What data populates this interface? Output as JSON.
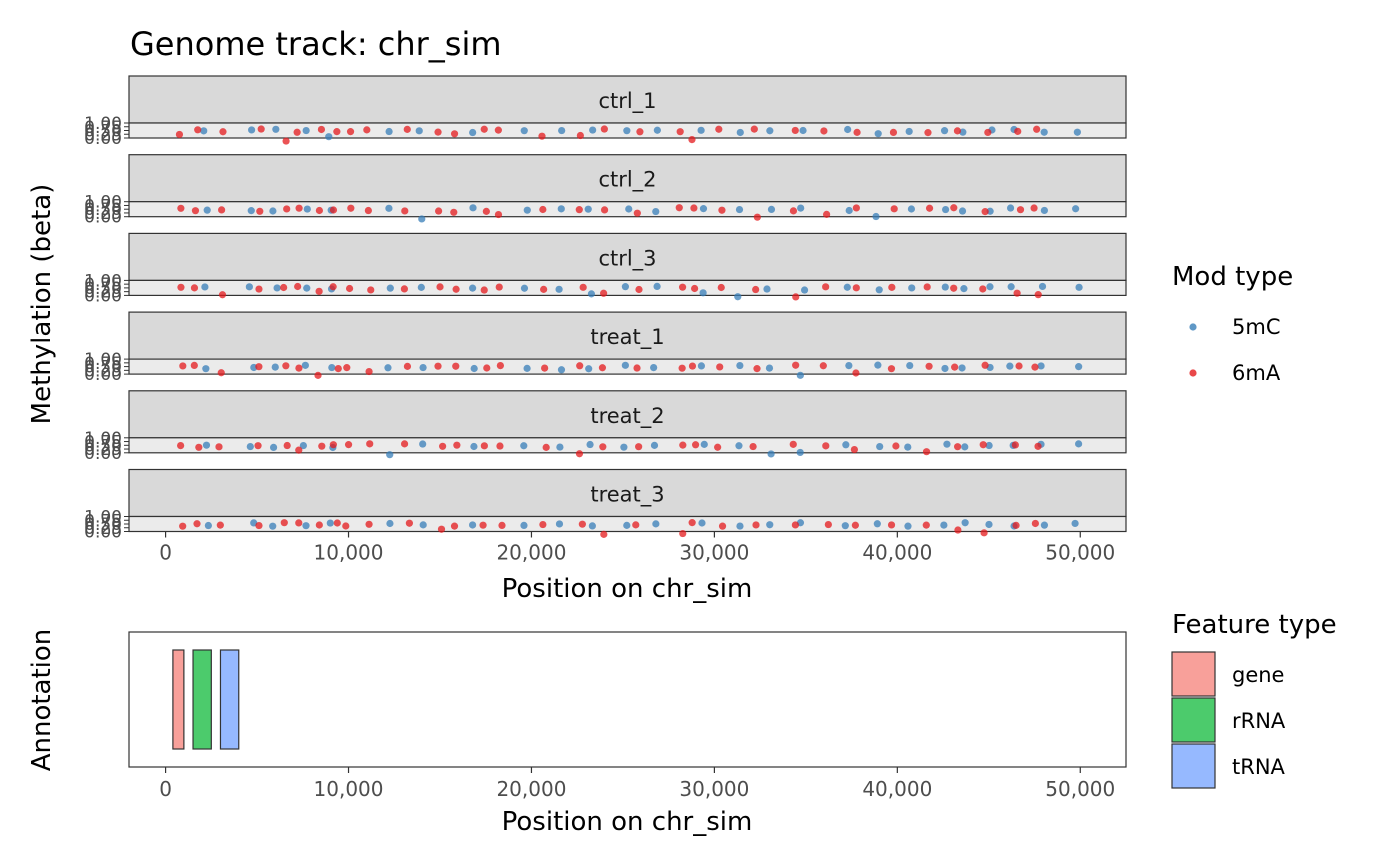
{
  "title": "Genome track: chr_sim",
  "colors": {
    "mod_5mC": "#377EB8",
    "mod_6mA": "#E41A1C",
    "gene": "#F8A09A",
    "rRNA": "#4CCB6C",
    "tRNA": "#96B9FF"
  },
  "chart_data": [
    {
      "type": "scatter",
      "facets": [
        "ctrl_1",
        "ctrl_2",
        "ctrl_3",
        "treat_1",
        "treat_2",
        "treat_3"
      ],
      "xlabel": "Position on chr_sim",
      "ylabel": "Methylation (beta)",
      "xlim": [
        -2000,
        52500
      ],
      "ylim": [
        0,
        1
      ],
      "x_ticks": [
        0,
        10000,
        20000,
        30000,
        40000,
        50000
      ],
      "x_tick_labels": [
        "0",
        "10,000",
        "20,000",
        "30,000",
        "40,000",
        "50,000"
      ],
      "y_ticks": [
        0,
        0.25,
        0.5,
        0.75,
        1
      ],
      "y_tick_labels": [
        "0.00",
        "0.25",
        "0.50",
        "0.75",
        "1.00"
      ],
      "legend": {
        "title": "Mod type",
        "entries": [
          "5mC",
          "6mA"
        ],
        "placement": "right"
      },
      "series": [
        {
          "name": "5mC",
          "x": [
            2200,
            4700,
            6000,
            7600,
            9000,
            12200,
            14000,
            16900,
            19700,
            21600,
            23200,
            25200,
            26800,
            29400,
            31300,
            33000,
            34800,
            37300,
            38900,
            40700,
            42600,
            43600,
            45100,
            46300,
            47900,
            49800
          ]
        },
        {
          "name": "6mA",
          "x": [
            800,
            1700,
            3000,
            5200,
            6600,
            7200,
            8400,
            9300,
            10000,
            11100,
            13200,
            15000,
            15800,
            17500,
            18300,
            20700,
            22700,
            24000,
            25800,
            28200,
            28900,
            30300,
            32200,
            34300,
            36100,
            37800,
            39800,
            41700,
            43200,
            44800,
            46600,
            47600
          ]
        }
      ]
    },
    {
      "type": "bar",
      "xlabel": "Position on chr_sim",
      "ylabel": "Annotation",
      "xlim": [
        -2000,
        52500
      ],
      "x_ticks": [
        0,
        10000,
        20000,
        30000,
        40000,
        50000
      ],
      "x_tick_labels": [
        "0",
        "10,000",
        "20,000",
        "30,000",
        "40,000",
        "50,000"
      ],
      "legend": {
        "title": "Feature type",
        "entries": [
          "gene",
          "rRNA",
          "tRNA"
        ],
        "placement": "right"
      },
      "features": [
        {
          "type": "gene",
          "start": 400,
          "end": 1000
        },
        {
          "type": "rRNA",
          "start": 1500,
          "end": 2500
        },
        {
          "type": "tRNA",
          "start": 3000,
          "end": 4000
        }
      ]
    }
  ]
}
